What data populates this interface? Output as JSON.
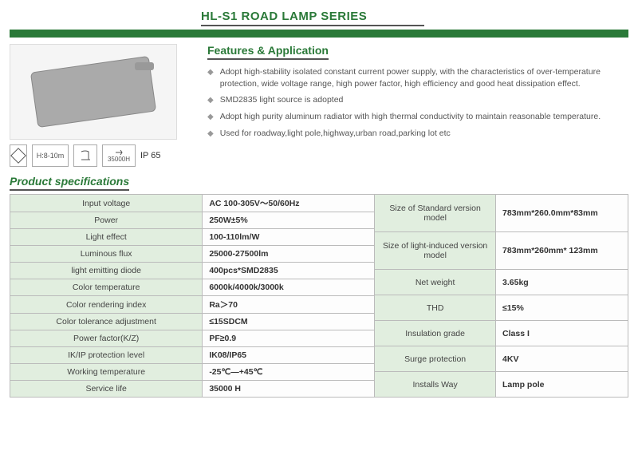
{
  "title": "HL-S1 ROAD LAMP SERIES",
  "colors": {
    "brand_green": "#2a7938",
    "row_bg": "#e1eedf",
    "border": "#bbb",
    "title_underline": "#545454"
  },
  "icons": {
    "height_label": "H:8-10m",
    "hours": "35000H",
    "ip": "IP 65"
  },
  "features": {
    "title": "Features & Application",
    "items": [
      "Adopt high-stability isolated constant current power supply, with the characteristics of over-temperature protection, wide voltage range, high power factor, high efficiency and good heat dissipation effect.",
      "SMD2835 light source is adopted",
      "Adopt high purity aluminum radiator with high thermal conductivity to maintain reasonable temperature.",
      "Used for roadway,light pole,highway,urban road,parking lot etc"
    ]
  },
  "spec_title": "Product specifications",
  "specs_left": [
    {
      "label": "Input voltage",
      "value": "AC 100-305V～50/60Hz"
    },
    {
      "label": "Power",
      "value": "250W±5%"
    },
    {
      "label": "Light effect",
      "value": "100-110lm/W"
    },
    {
      "label": "Luminous flux",
      "value": "25000-27500lm"
    },
    {
      "label": "light emitting diode",
      "value": "400pcs*SMD2835"
    },
    {
      "label": "Color temperature",
      "value": "6000k/4000k/3000k"
    },
    {
      "label": "Color rendering index",
      "value": "Ra＞70"
    },
    {
      "label": "Color tolerance adjustment",
      "value": "≤15SDCM"
    },
    {
      "label": "Power factor(K/Z)",
      "value": "PF≥0.9"
    },
    {
      "label": "IK/IP protection level",
      "value": "IK08/IP65"
    },
    {
      "label": "Working temperature",
      "value": "-25℃—+45℃"
    },
    {
      "label": "Service life",
      "value": "35000 H"
    }
  ],
  "specs_right": [
    {
      "label": "Size of Standard version model",
      "value": "783mm*260.0mm*83mm"
    },
    {
      "label": "Size of light-induced version model",
      "value": "783mm*260mm* 123mm"
    },
    {
      "label": "Net weight",
      "value": "3.65kg"
    },
    {
      "label": "THD",
      "value": "≤15%"
    },
    {
      "label": "Insulation grade",
      "value": "Class I"
    },
    {
      "label": "Surge protection",
      "value": "4KV"
    },
    {
      "label": "Installs Way",
      "value": "Lamp pole"
    }
  ]
}
